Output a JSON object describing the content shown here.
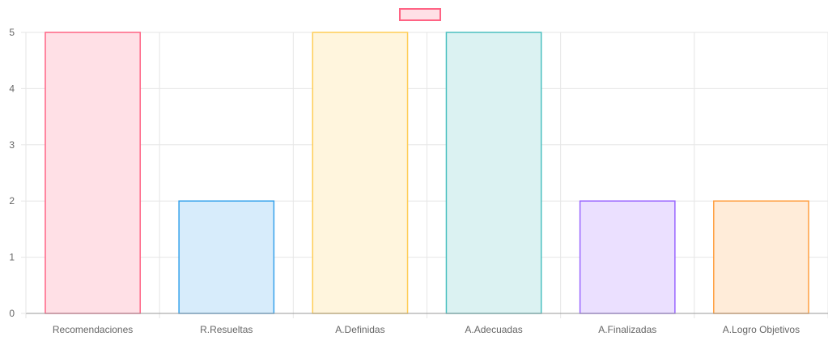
{
  "chart_data": {
    "type": "bar",
    "categories": [
      "Recomendaciones",
      "R.Resueltas",
      "A.Definidas",
      "A.Adecuadas",
      "A.Finalizadas",
      "A.Logro Objetivos"
    ],
    "series": [
      {
        "values": [
          5,
          2,
          5,
          5,
          2,
          2
        ]
      }
    ],
    "title": "",
    "xlabel": "",
    "ylabel": "",
    "ylim": [
      0,
      5
    ],
    "yticks": [
      "0",
      "1",
      "2",
      "3",
      "4",
      "5"
    ],
    "grid": true,
    "legend": {
      "position": "top",
      "color": "#ff6384"
    },
    "colors": {
      "fills": [
        "#ffe0e6",
        "#d7ecfb",
        "#fff5dd",
        "#dbf2f2",
        "#ebe0ff",
        "#ffecd9"
      ],
      "borders": [
        "#ff6384",
        "#36a2eb",
        "#ffcd56",
        "#4bc0c0",
        "#9966ff",
        "#ff9f40"
      ],
      "grid": "#e6e6e6",
      "axis": "#999999",
      "text": "#666666"
    }
  }
}
